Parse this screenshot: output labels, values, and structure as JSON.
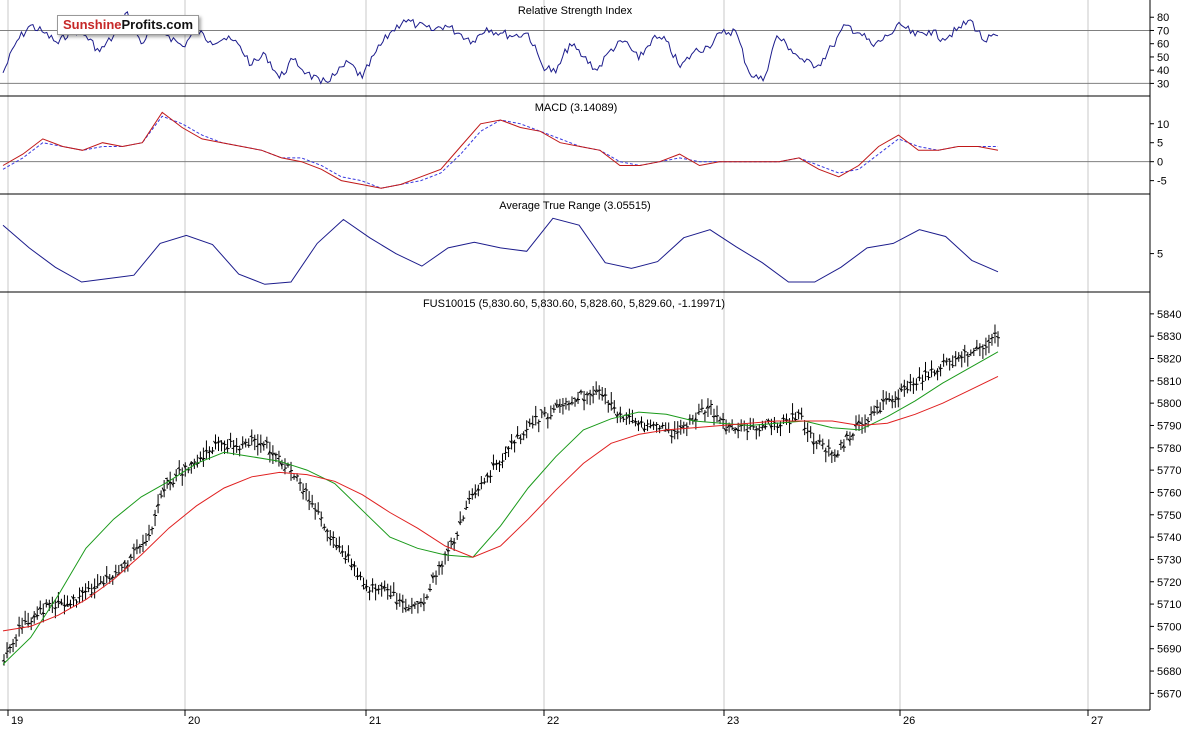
{
  "logo": {
    "part1": "Sunshine",
    "part2": "Profits.com"
  },
  "colors": {
    "price_bar": "#000000",
    "ma_fast": "#1a9a1a",
    "ma_slow": "#e02020",
    "indicator": "#1c1c8c",
    "signal": "#3a3ae0",
    "macd_line": "#c01818",
    "grid": "#c8c8c8",
    "ref_line": "#808080"
  },
  "x_axis_labels": [
    "19",
    "20",
    "21",
    "22",
    "23",
    "26",
    "27"
  ],
  "chart_data": [
    {
      "type": "line",
      "title": "Relative Strength Index",
      "ylim": [
        22,
        90
      ],
      "yticks": [
        80,
        70,
        60,
        50,
        40,
        30
      ],
      "ref_lines": [
        70,
        30
      ],
      "series": [
        {
          "values": [
            38,
            62,
            74,
            68,
            60,
            72,
            66,
            54,
            66,
            84,
            60,
            74,
            66,
            58,
            70,
            62,
            64,
            60,
            44,
            52,
            34,
            48,
            38,
            30,
            36,
            46,
            34,
            54,
            68,
            78,
            74,
            70,
            74,
            68,
            62,
            72,
            68,
            66,
            68,
            44,
            38,
            60,
            50,
            40,
            56,
            62,
            48,
            64,
            62,
            42,
            54,
            58,
            68,
            70,
            38,
            32,
            66,
            56,
            46,
            44,
            58,
            74,
            68,
            58,
            66,
            74,
            66,
            70,
            64,
            70,
            78,
            62,
            66
          ]
        }
      ]
    },
    {
      "type": "line",
      "title": "MACD (3.14089)",
      "ylim": [
        -8,
        16
      ],
      "yticks": [
        10,
        5,
        0,
        -5
      ],
      "ref_lines": [
        0
      ],
      "series": [
        {
          "values": [
            -1,
            2,
            6,
            4,
            3,
            5,
            4,
            5,
            13,
            9,
            6,
            5,
            4,
            3,
            1,
            0,
            -2,
            -5,
            -6,
            -7,
            -6,
            -4,
            -2,
            4,
            10,
            11,
            9,
            8,
            5,
            4,
            3,
            -1,
            -1,
            0,
            2,
            -1,
            0,
            0,
            0,
            0,
            1,
            -2,
            -4,
            -1,
            4,
            7,
            3,
            3,
            4,
            4,
            3
          ]
        },
        {
          "values": [
            -2,
            1,
            5,
            4,
            3,
            4,
            4,
            5,
            12,
            10,
            7,
            5,
            4,
            3,
            1,
            1,
            -1,
            -4,
            -5,
            -7,
            -6,
            -5,
            -3,
            2,
            8,
            11,
            10,
            8,
            6,
            4,
            3,
            0,
            -1,
            0,
            1,
            0,
            0,
            0,
            0,
            0,
            1,
            -1,
            -3,
            -2,
            2,
            6,
            4,
            3,
            4,
            4,
            4
          ]
        }
      ]
    },
    {
      "type": "line",
      "title": "Average True Range (3.05515)",
      "ylim": [
        1.8,
        9.8
      ],
      "yticks": [
        5
      ],
      "series": [
        {
          "values": [
            7.5,
            5.5,
            3.8,
            2.5,
            2.8,
            3.1,
            5.9,
            6.6,
            5.8,
            3.2,
            2.3,
            2.5,
            5.9,
            8.0,
            6.4,
            5.0,
            3.9,
            5.5,
            6.0,
            5.5,
            5.2,
            8.1,
            7.5,
            4.2,
            3.7,
            4.3,
            6.4,
            7.1,
            5.6,
            4.2,
            2.5,
            2.5,
            3.8,
            5.5,
            5.9,
            7.1,
            6.5,
            4.4,
            3.4
          ]
        }
      ]
    },
    {
      "type": "bar",
      "title": "FUS10015 (5,830.60, 5,830.60, 5,828.60, 5,829.60, -1.19971)",
      "ylim": [
        5663,
        5848
      ],
      "yticks": [
        5840,
        5830,
        5820,
        5810,
        5800,
        5790,
        5780,
        5770,
        5760,
        5750,
        5740,
        5730,
        5720,
        5710,
        5700,
        5690,
        5680,
        5670
      ],
      "series": [
        {
          "values": [
            5683,
            5700,
            5707,
            5709,
            5711,
            5717,
            5722,
            5730,
            5740,
            5763,
            5770,
            5776,
            5782,
            5781,
            5783,
            5779,
            5768,
            5757,
            5742,
            5731,
            5718,
            5716,
            5711,
            5708,
            5724,
            5740,
            5760,
            5770,
            5779,
            5790,
            5795,
            5799,
            5803,
            5806,
            5795,
            5790,
            5791,
            5786,
            5792,
            5799,
            5789,
            5789,
            5790,
            5791,
            5794,
            5782,
            5777,
            5788,
            5795,
            5801,
            5807,
            5812,
            5817,
            5820,
            5826,
            5830
          ]
        },
        {
          "values": [
            5683,
            5695,
            5714,
            5735,
            5748,
            5758,
            5765,
            5773,
            5778,
            5776,
            5774,
            5770,
            5764,
            5752,
            5740,
            5735,
            5732,
            5731,
            5745,
            5762,
            5776,
            5788,
            5793,
            5796,
            5795,
            5792,
            5791,
            5790,
            5791,
            5792,
            5789,
            5788,
            5794,
            5801,
            5809,
            5816,
            5823
          ]
        },
        {
          "values": [
            5698,
            5700,
            5705,
            5712,
            5721,
            5732,
            5744,
            5754,
            5762,
            5767,
            5769,
            5768,
            5765,
            5759,
            5751,
            5744,
            5736,
            5731,
            5736,
            5748,
            5761,
            5773,
            5782,
            5786,
            5788,
            5789,
            5790,
            5791,
            5792,
            5792,
            5792,
            5790,
            5791,
            5795,
            5800,
            5806,
            5812
          ]
        }
      ]
    }
  ]
}
